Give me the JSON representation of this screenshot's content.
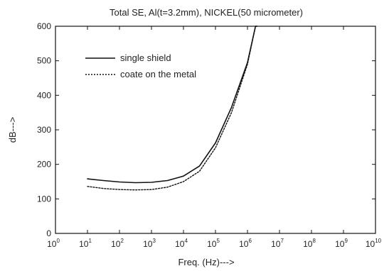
{
  "chart_data": {
    "type": "line",
    "title": "Total SE, Al(t=3.2mm), NICKEL(50 micrometer)",
    "xlabel": "Freq. (Hz)--->",
    "ylabel": "dB--->",
    "x_scale": "log",
    "xlim": [
      1,
      10000000000
    ],
    "ylim": [
      0,
      600
    ],
    "x_ticks": [
      {
        "base": "10",
        "exp": "0"
      },
      {
        "base": "10",
        "exp": "1"
      },
      {
        "base": "10",
        "exp": "2"
      },
      {
        "base": "10",
        "exp": "3"
      },
      {
        "base": "10",
        "exp": "4"
      },
      {
        "base": "10",
        "exp": "5"
      },
      {
        "base": "10",
        "exp": "6"
      },
      {
        "base": "10",
        "exp": "7"
      },
      {
        "base": "10",
        "exp": "8"
      },
      {
        "base": "10",
        "exp": "9"
      },
      {
        "base": "10",
        "exp": "10"
      }
    ],
    "y_ticks": [
      "0",
      "100",
      "200",
      "300",
      "400",
      "500",
      "600"
    ],
    "grid": false,
    "legend_position": "top-left",
    "series": [
      {
        "name": "single shield",
        "style": "solid",
        "color": "#111111",
        "x": [
          10,
          31.6,
          100,
          316,
          1000,
          3160,
          10000,
          31600,
          100000,
          316000,
          1000000,
          1780000,
          2000000
        ],
        "y": [
          158,
          153,
          149,
          147,
          148,
          153,
          166,
          195,
          262,
          365,
          495,
          600,
          600
        ]
      },
      {
        "name": "coate on the metal",
        "style": "dotted",
        "color": "#111111",
        "x": [
          10,
          31.6,
          100,
          316,
          1000,
          3160,
          10000,
          31600,
          100000,
          316000,
          1000000,
          1780000,
          2000000
        ],
        "y": [
          136,
          130,
          127,
          126,
          127,
          134,
          150,
          180,
          248,
          350,
          490,
          600,
          600
        ]
      }
    ]
  }
}
